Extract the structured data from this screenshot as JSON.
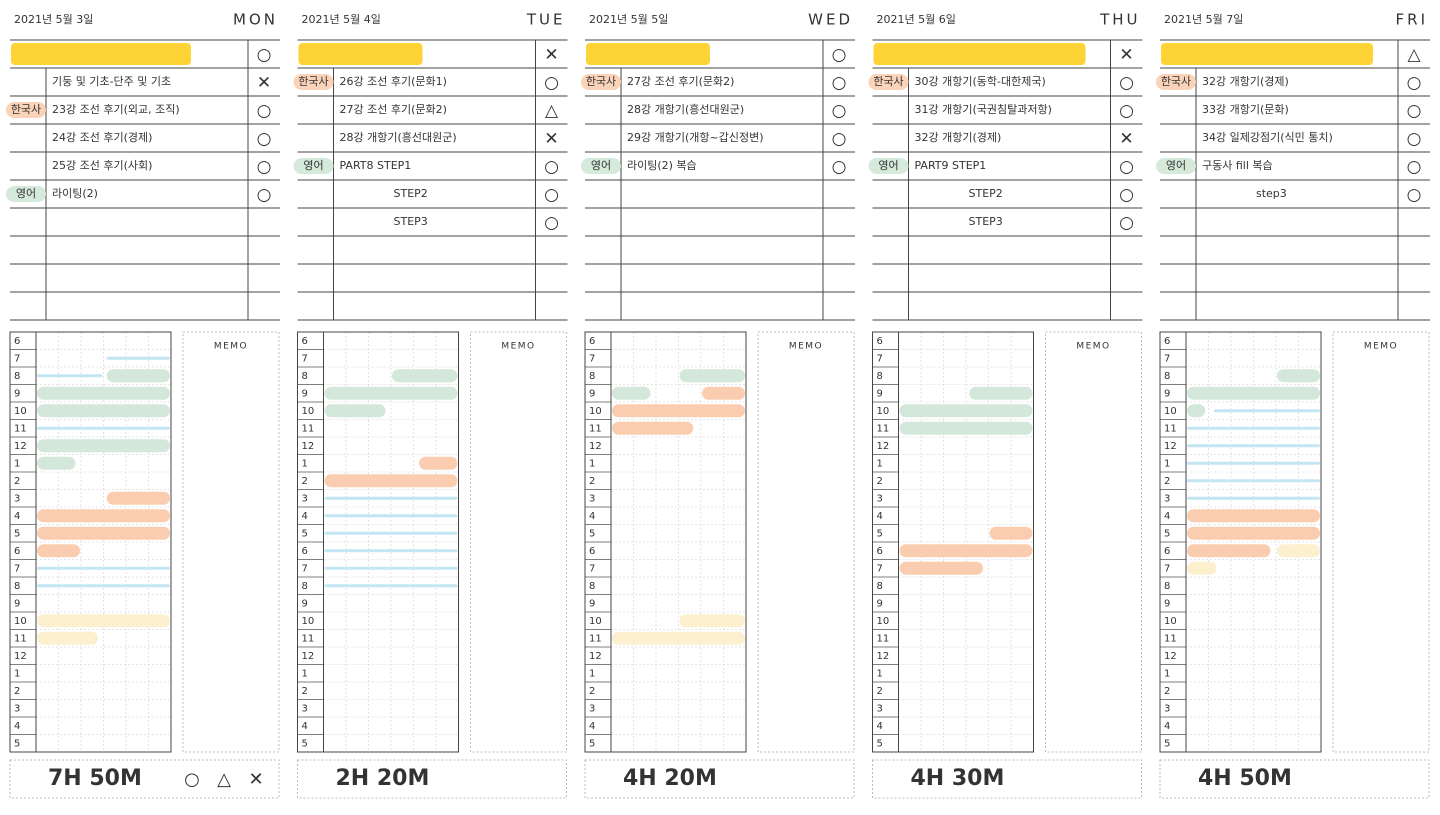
{
  "hours": [
    "6",
    "7",
    "8",
    "9",
    "10",
    "11",
    "12",
    "1",
    "2",
    "3",
    "4",
    "5",
    "6",
    "7",
    "8",
    "9",
    "10",
    "11",
    "12",
    "1",
    "2",
    "3",
    "4",
    "5"
  ],
  "memo": "MEMO",
  "legend": [
    "○",
    "△",
    "✕"
  ],
  "line_color": "#c4e6f2",
  "days": [
    {
      "date": "2021년 5월 3일",
      "day": "MON",
      "total": "7H 50M",
      "rows": [
        {
          "tag": "",
          "task": "",
          "mark": "○"
        },
        {
          "tag": "",
          "task": "기둥 및 기초-단주 및 기초",
          "mark": "✕"
        },
        {
          "tag": "한국사",
          "tag_color": "#fbd3b8",
          "task": "23강 조선 후기(외교, 조직)",
          "mark": "○"
        },
        {
          "tag": "",
          "task": "24강 조선 후기(경제)",
          "mark": "○"
        },
        {
          "tag": "",
          "task": "25강 조선 후기(사회)",
          "mark": "○"
        },
        {
          "tag": "영어",
          "tag_color": "#d6eadc",
          "task": "라이팅(2)",
          "mark": "○"
        }
      ],
      "blocks": [
        {
          "row": 1,
          "from": 31,
          "to": 60,
          "color": "#c4e6f2"
        },
        {
          "row": 2,
          "from": 0,
          "to": 30,
          "color": "#c4e6f2"
        },
        {
          "row": 2,
          "from": 31,
          "to": 60,
          "color": "#d3e8da"
        },
        {
          "row": 3,
          "from": 0,
          "to": 60,
          "color": "#d3e8da"
        },
        {
          "row": 4,
          "from": 0,
          "to": 60,
          "color": "#d3e8da"
        },
        {
          "row": 5,
          "from": 0,
          "to": 60,
          "color": "#c4e6f2"
        },
        {
          "row": 6,
          "from": 0,
          "to": 60,
          "color": "#d3e8da"
        },
        {
          "row": 7,
          "from": 0,
          "to": 18,
          "color": "#d3e8da"
        },
        {
          "row": 9,
          "from": 31,
          "to": 60,
          "color": "#fbcdb0"
        },
        {
          "row": 10,
          "from": 0,
          "to": 60,
          "color": "#fbcdb0"
        },
        {
          "row": 11,
          "from": 0,
          "to": 60,
          "color": "#fbcdb0"
        },
        {
          "row": 12,
          "from": 0,
          "to": 20,
          "color": "#fbcdb0"
        },
        {
          "row": 13,
          "from": 0,
          "to": 60,
          "color": "#c4e6f2"
        },
        {
          "row": 14,
          "from": 0,
          "to": 60,
          "color": "#c4e6f2"
        },
        {
          "row": 16,
          "from": 0,
          "to": 60,
          "color": "#fcf0cf"
        },
        {
          "row": 17,
          "from": 0,
          "to": 28,
          "color": "#fcf0cf"
        }
      ]
    },
    {
      "date": "2021년 5월 4일",
      "day": "TUE",
      "total": "2H 20M",
      "rows": [
        {
          "tag": "",
          "task": "",
          "mark": "✕"
        },
        {
          "tag": "한국사",
          "tag_color": "#fbd3b8",
          "task": "26강 조선 후기(문화1)",
          "mark": "○"
        },
        {
          "tag": "",
          "task": "27강 조선 후기(문화2)",
          "mark": "△"
        },
        {
          "tag": "",
          "task": "28강 개항기(흥선대원군)",
          "mark": "✕"
        },
        {
          "tag": "영어",
          "tag_color": "#d6eadc",
          "task": "PART8   STEP1",
          "mark": "○"
        },
        {
          "tag": "",
          "task": "STEP2",
          "mark": "○"
        },
        {
          "tag": "",
          "task": "STEP3",
          "mark": "○"
        }
      ],
      "blocks": [
        {
          "row": 2,
          "from": 30,
          "to": 60,
          "color": "#d3e8da"
        },
        {
          "row": 3,
          "from": 0,
          "to": 60,
          "color": "#d3e8da"
        },
        {
          "row": 4,
          "from": 0,
          "to": 28,
          "color": "#d3e8da"
        },
        {
          "row": 7,
          "from": 42,
          "to": 60,
          "color": "#fbcdb0"
        },
        {
          "row": 8,
          "from": 0,
          "to": 60,
          "color": "#fbcdb0"
        },
        {
          "row": 9,
          "from": 0,
          "to": 60,
          "color": "#c4e6f2"
        },
        {
          "row": 10,
          "from": 0,
          "to": 60,
          "color": "#c4e6f2"
        },
        {
          "row": 11,
          "from": 0,
          "to": 60,
          "color": "#c4e6f2"
        },
        {
          "row": 12,
          "from": 0,
          "to": 60,
          "color": "#c4e6f2"
        },
        {
          "row": 13,
          "from": 0,
          "to": 60,
          "color": "#c4e6f2"
        },
        {
          "row": 14,
          "from": 0,
          "to": 60,
          "color": "#c4e6f2"
        }
      ]
    },
    {
      "date": "2021년 5월 5일",
      "day": "WED",
      "total": "4H 20M",
      "rows": [
        {
          "tag": "",
          "task": "",
          "mark": "○"
        },
        {
          "tag": "한국사",
          "tag_color": "#fbd3b8",
          "task": "27강 조선 후기(문화2)",
          "mark": "○"
        },
        {
          "tag": "",
          "task": "28강 개항기(흥선대원군)",
          "mark": "○"
        },
        {
          "tag": "",
          "task": "29강 개항기(개항~갑신정변)",
          "mark": "○"
        },
        {
          "tag": "영어",
          "tag_color": "#d6eadc",
          "task": "라이팅(2) 복습",
          "mark": "○"
        }
      ],
      "blocks": [
        {
          "row": 2,
          "from": 30,
          "to": 60,
          "color": "#d3e8da"
        },
        {
          "row": 3,
          "from": 0,
          "to": 18,
          "color": "#d3e8da"
        },
        {
          "row": 3,
          "from": 40,
          "to": 60,
          "color": "#fbcdb0"
        },
        {
          "row": 4,
          "from": 0,
          "to": 60,
          "color": "#fbcdb0"
        },
        {
          "row": 5,
          "from": 0,
          "to": 37,
          "color": "#fbcdb0"
        },
        {
          "row": 16,
          "from": 30,
          "to": 60,
          "color": "#fcf0cf"
        },
        {
          "row": 17,
          "from": 0,
          "to": 60,
          "color": "#fcf0cf"
        }
      ]
    },
    {
      "date": "2021년 5월 6일",
      "day": "THU",
      "total": "4H 30M",
      "rows": [
        {
          "tag": "",
          "task": "",
          "mark": "✕"
        },
        {
          "tag": "한국사",
          "tag_color": "#fbd3b8",
          "task": "30강 개항기(동학-대한제국)",
          "mark": "○"
        },
        {
          "tag": "",
          "task": "31강 개항기(국권침탈과저항)",
          "mark": "○"
        },
        {
          "tag": "",
          "task": "32강 개항기(경제)",
          "mark": "✕"
        },
        {
          "tag": "영어",
          "tag_color": "#d6eadc",
          "task": "PART9   STEP1",
          "mark": "○"
        },
        {
          "tag": "",
          "task": "STEP2",
          "mark": "○"
        },
        {
          "tag": "",
          "task": "STEP3",
          "mark": "○"
        }
      ],
      "blocks": [
        {
          "row": 3,
          "from": 31,
          "to": 60,
          "color": "#d3e8da"
        },
        {
          "row": 4,
          "from": 0,
          "to": 60,
          "color": "#d3e8da"
        },
        {
          "row": 5,
          "from": 0,
          "to": 60,
          "color": "#d3e8da"
        },
        {
          "row": 11,
          "from": 40,
          "to": 60,
          "color": "#fbcdb0"
        },
        {
          "row": 12,
          "from": 0,
          "to": 60,
          "color": "#fbcdb0"
        },
        {
          "row": 13,
          "from": 0,
          "to": 38,
          "color": "#fbcdb0"
        }
      ]
    },
    {
      "date": "2021년 5월 7일",
      "day": "FRI",
      "total": "4H 50M",
      "rows": [
        {
          "tag": "",
          "task": "",
          "mark": "△"
        },
        {
          "tag": "한국사",
          "tag_color": "#fbd3b8",
          "task": "32강 개항기(경제)",
          "mark": "○"
        },
        {
          "tag": "",
          "task": "33강 개항기(문화)",
          "mark": "○"
        },
        {
          "tag": "",
          "task": "34강 일제강점기(식민 통치)",
          "mark": "○"
        },
        {
          "tag": "영어",
          "tag_color": "#d6eadc",
          "task": "구동사 fill 복습",
          "mark": "○"
        },
        {
          "tag": "",
          "task": "step3",
          "mark": "○"
        }
      ],
      "blocks": [
        {
          "row": 2,
          "from": 40,
          "to": 60,
          "color": "#d3e8da"
        },
        {
          "row": 3,
          "from": 0,
          "to": 60,
          "color": "#d3e8da"
        },
        {
          "row": 4,
          "from": 0,
          "to": 9,
          "color": "#d3e8da"
        },
        {
          "row": 4,
          "from": 12,
          "to": 60,
          "color": "#c4e6f2"
        },
        {
          "row": 5,
          "from": 0,
          "to": 60,
          "color": "#c4e6f2"
        },
        {
          "row": 6,
          "from": 0,
          "to": 60,
          "color": "#c4e6f2"
        },
        {
          "row": 7,
          "from": 0,
          "to": 60,
          "color": "#c4e6f2"
        },
        {
          "row": 8,
          "from": 0,
          "to": 60,
          "color": "#c4e6f2"
        },
        {
          "row": 9,
          "from": 0,
          "to": 60,
          "color": "#c4e6f2"
        },
        {
          "row": 10,
          "from": 0,
          "to": 60,
          "color": "#fbcdb0"
        },
        {
          "row": 11,
          "from": 0,
          "to": 60,
          "color": "#fbcdb0"
        },
        {
          "row": 12,
          "from": 0,
          "to": 38,
          "color": "#fbcdb0"
        },
        {
          "row": 12,
          "from": 40,
          "to": 60,
          "color": "#fcf0cf"
        },
        {
          "row": 13,
          "from": 0,
          "to": 14,
          "color": "#fcf0cf"
        }
      ]
    }
  ]
}
